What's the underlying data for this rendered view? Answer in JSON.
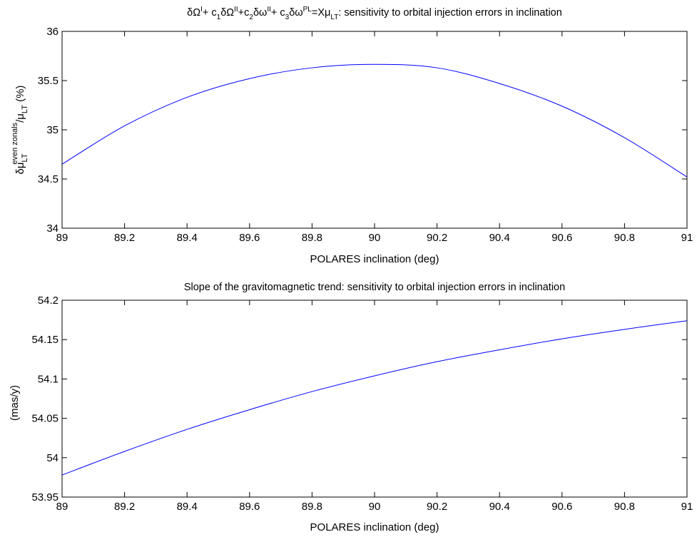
{
  "chart_data": [
    {
      "type": "line",
      "title": "δΩᴵ+ c₁δΩᴵᴵ+c₂δωᴵᴵ+ c₃δωᴾᴸ=Xμ_LT: sensitivity to orbital injection errors in inclination",
      "xlabel": "POLARES inclination (deg)",
      "ylabel": "δμ_LT^even zonals/μ_LT (%)",
      "xlim": [
        89,
        91
      ],
      "ylim": [
        34,
        36
      ],
      "xticks": [
        "89",
        "89.2",
        "89.4",
        "89.6",
        "89.8",
        "90",
        "90.2",
        "90.4",
        "90.6",
        "90.8",
        "91"
      ],
      "yticks": [
        "34",
        "34.5",
        "35",
        "35.5",
        "36"
      ],
      "grid": false,
      "line_color": "#0000ff",
      "series": [
        {
          "x": [
            89.0,
            89.2,
            89.4,
            89.6,
            89.8,
            90.0,
            90.2,
            90.4,
            90.6,
            90.8,
            91.0
          ],
          "y": [
            34.65,
            35.04,
            35.33,
            35.52,
            35.63,
            35.665,
            35.63,
            35.47,
            35.24,
            34.92,
            34.52
          ]
        }
      ]
    },
    {
      "type": "line",
      "title": "Slope of the gravitomagnetic trend: sensitivity to orbital injection errors in inclination",
      "xlabel": "POLARES inclination (deg)",
      "ylabel": "(mas/y)",
      "xlim": [
        89,
        91
      ],
      "ylim": [
        53.95,
        54.2
      ],
      "xticks": [
        "89",
        "89.2",
        "89.4",
        "89.6",
        "89.8",
        "90",
        "90.2",
        "90.4",
        "90.6",
        "90.8",
        "91"
      ],
      "yticks": [
        "53.95",
        "54",
        "54.05",
        "54.1",
        "54.15",
        "54.2"
      ],
      "grid": false,
      "line_color": "#0000ff",
      "series": [
        {
          "x": [
            89.0,
            89.2,
            89.4,
            89.6,
            89.8,
            90.0,
            90.2,
            90.4,
            90.6,
            90.8,
            91.0
          ],
          "y": [
            53.978,
            54.008,
            54.036,
            54.061,
            54.084,
            54.104,
            54.122,
            54.137,
            54.151,
            54.163,
            54.174
          ]
        }
      ]
    }
  ]
}
